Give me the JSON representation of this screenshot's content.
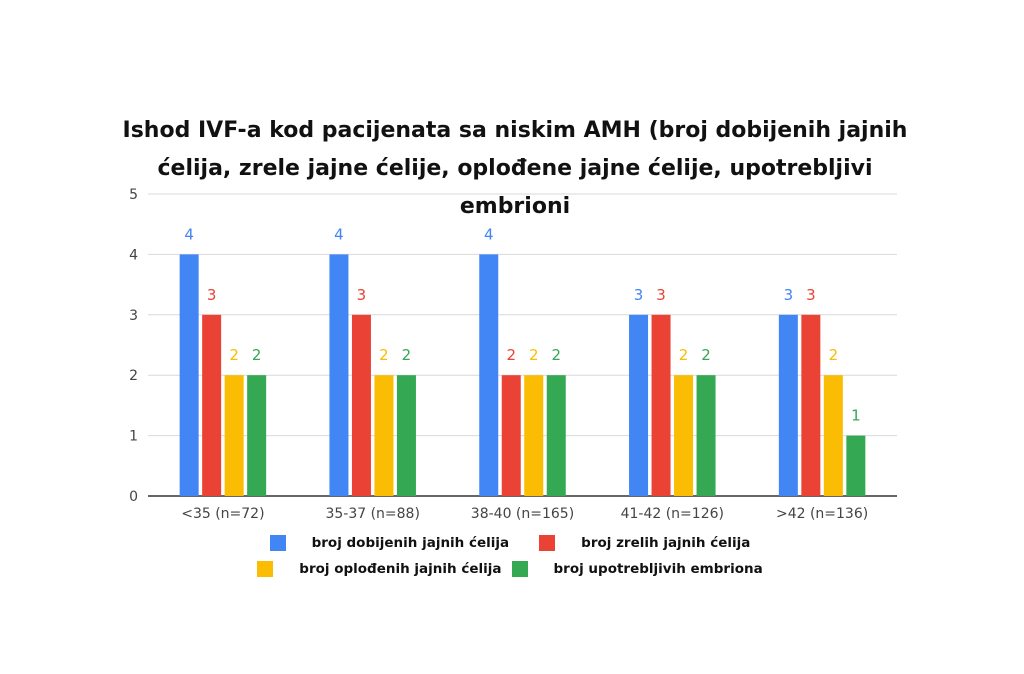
{
  "chart_data": {
    "type": "bar",
    "title_lines": [
      "Ishod IVF-a kod pacijenata sa niskim AMH (broj dobijenih jajnih",
      "ćelija, zrele jajne ćelije, oplođene jajne ćelije, upotrebljivi embrioni"
    ],
    "categories": [
      "<35 (n=72)",
      "35-37 (n=88)",
      "38-40 (n=165)",
      "41-42 (n=126)",
      ">42 (n=136)"
    ],
    "series": [
      {
        "name": "broj dobijenih jajnih ćelija",
        "color": "#4285f4",
        "values": [
          4,
          4,
          4,
          3,
          3
        ]
      },
      {
        "name": "broj zrelih jajnih ćelija",
        "color": "#ea4335",
        "values": [
          3,
          3,
          2,
          3,
          3
        ]
      },
      {
        "name": "broj oplođenih jajnih ćelija",
        "color": "#fbbc04",
        "values": [
          2,
          2,
          2,
          2,
          2
        ]
      },
      {
        "name": "broj upotrebljivih embriona",
        "color": "#34a853",
        "values": [
          2,
          2,
          2,
          2,
          1
        ]
      }
    ],
    "y_ticks": [
      0,
      1,
      2,
      3,
      4,
      5
    ],
    "ylim": [
      0,
      5
    ],
    "xlabel": "",
    "ylabel": "",
    "grid": true,
    "legend_position": "bottom"
  }
}
